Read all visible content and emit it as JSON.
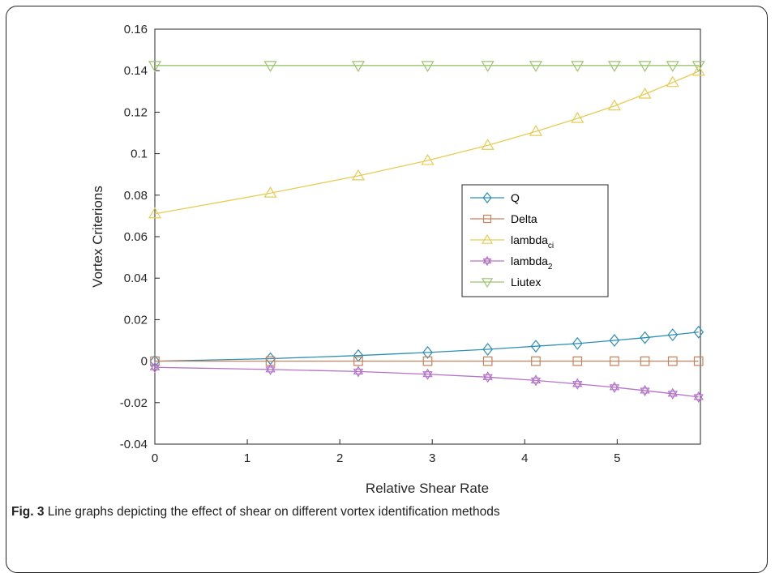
{
  "caption": {
    "label": "Fig. 3",
    "text": "Line graphs depicting the effect of shear on different vortex identification methods"
  },
  "chart_data": {
    "type": "line",
    "title": "",
    "xlabel": "Relative Shear Rate",
    "ylabel": "Vortex Criterions",
    "xlim": [
      0,
      5.9
    ],
    "ylim": [
      -0.04,
      0.16
    ],
    "xticks": [
      "0",
      "1",
      "2",
      "3",
      "4",
      "5"
    ],
    "yticks": [
      "-0.04",
      "-0.02",
      "0",
      "0.02",
      "0.04",
      "0.06",
      "0.08",
      "0.1",
      "0.12",
      "0.14",
      "0.16"
    ],
    "grid": false,
    "legend_position": "center-right",
    "x": [
      0,
      1.25,
      2.2,
      2.95,
      3.6,
      4.12,
      4.57,
      4.97,
      5.3,
      5.6,
      5.88
    ],
    "series": [
      {
        "name": "Q",
        "sub": "",
        "marker": "diamond",
        "color": "#2e8fb5",
        "values": [
          0,
          0.0012,
          0.0027,
          0.0042,
          0.0057,
          0.0072,
          0.0085,
          0.01,
          0.0113,
          0.0127,
          0.014
        ]
      },
      {
        "name": "Delta",
        "sub": "",
        "marker": "square",
        "color": "#c9825b",
        "values": [
          0,
          0,
          0,
          0,
          0,
          0,
          0,
          0,
          0,
          0,
          0
        ]
      },
      {
        "name": "lambda",
        "sub": "ci",
        "marker": "triangle-up",
        "color": "#e6cc55",
        "values": [
          0.071,
          0.081,
          0.0893,
          0.0967,
          0.104,
          0.1107,
          0.117,
          0.123,
          0.1287,
          0.1343,
          0.1397
        ]
      },
      {
        "name": "lambda",
        "sub": "2",
        "marker": "hexagram",
        "color": "#b473c8",
        "values": [
          -0.003,
          -0.004,
          -0.005,
          -0.0063,
          -0.0077,
          -0.0093,
          -0.011,
          -0.0126,
          -0.0142,
          -0.0157,
          -0.0173
        ]
      },
      {
        "name": "Liutex",
        "sub": "",
        "marker": "triangle-down",
        "color": "#9cc46c",
        "values": [
          0.1425,
          0.1425,
          0.1425,
          0.1425,
          0.1425,
          0.1425,
          0.1425,
          0.1425,
          0.1425,
          0.1425,
          0.1425
        ]
      }
    ]
  }
}
